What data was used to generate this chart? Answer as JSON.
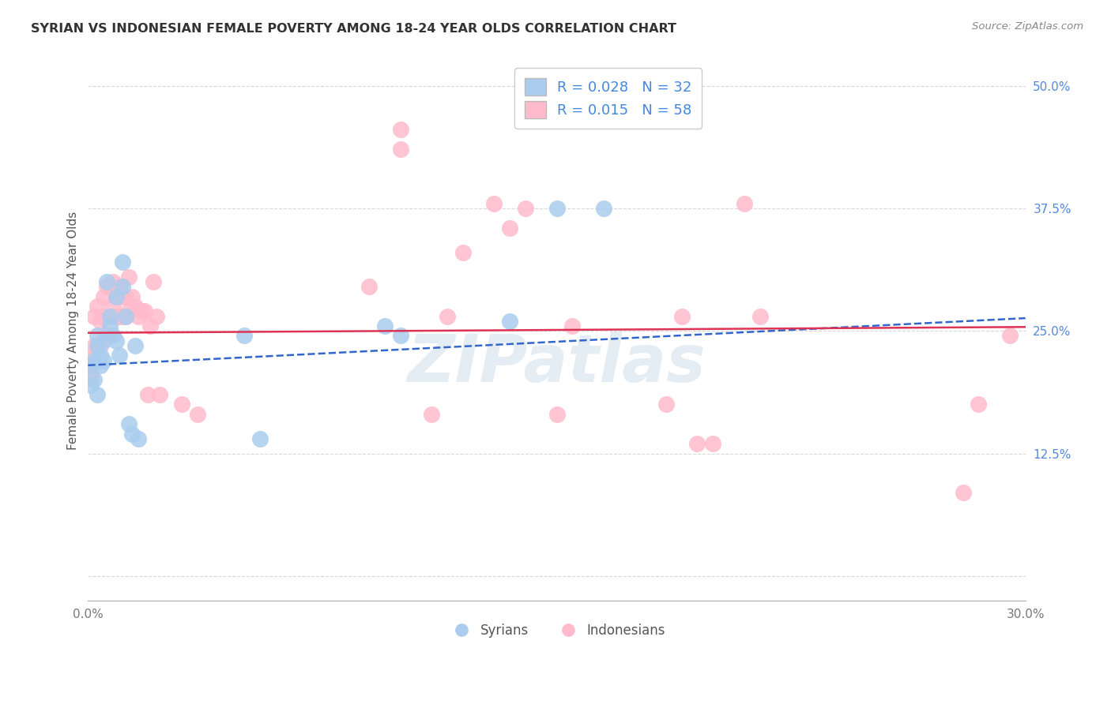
{
  "title": "SYRIAN VS INDONESIAN FEMALE POVERTY AMONG 18-24 YEAR OLDS CORRELATION CHART",
  "source": "Source: ZipAtlas.com",
  "ylabel": "Female Poverty Among 18-24 Year Olds",
  "xlim": [
    0.0,
    0.3
  ],
  "ylim": [
    -0.025,
    0.525
  ],
  "yticks": [
    0.0,
    0.125,
    0.25,
    0.375,
    0.5
  ],
  "ytick_labels": [
    "",
    "12.5%",
    "25.0%",
    "37.5%",
    "50.0%"
  ],
  "xticks": [
    0.0,
    0.05,
    0.1,
    0.15,
    0.2,
    0.25,
    0.3
  ],
  "xtick_labels": [
    "0.0%",
    "",
    "",
    "",
    "",
    "",
    "30.0%"
  ],
  "background_color": "#ffffff",
  "grid_color": "#d8d8d8",
  "syrians_color": "#aaccee",
  "indonesians_color": "#ffbbcc",
  "syrian_line_color": "#3366cc",
  "indonesian_line_color": "#dd3355",
  "legend_R_syrian": "R = 0.028",
  "legend_N_syrian": "N = 32",
  "legend_R_indonesian": "R = 0.015",
  "legend_N_indonesian": "N = 58",
  "watermark": "ZIPatlas",
  "syrians_x": [
    0.001,
    0.001,
    0.002,
    0.002,
    0.003,
    0.003,
    0.003,
    0.004,
    0.004,
    0.005,
    0.005,
    0.006,
    0.007,
    0.007,
    0.008,
    0.009,
    0.009,
    0.01,
    0.011,
    0.011,
    0.012,
    0.013,
    0.014,
    0.015,
    0.016,
    0.05,
    0.055,
    0.095,
    0.1,
    0.135,
    0.15,
    0.165
  ],
  "syrians_y": [
    0.215,
    0.195,
    0.22,
    0.2,
    0.245,
    0.235,
    0.185,
    0.225,
    0.215,
    0.24,
    0.22,
    0.3,
    0.265,
    0.255,
    0.245,
    0.285,
    0.24,
    0.225,
    0.32,
    0.295,
    0.265,
    0.155,
    0.145,
    0.235,
    0.14,
    0.245,
    0.14,
    0.255,
    0.245,
    0.26,
    0.375,
    0.375
  ],
  "indonesians_x": [
    0.001,
    0.001,
    0.002,
    0.002,
    0.003,
    0.003,
    0.004,
    0.004,
    0.005,
    0.005,
    0.006,
    0.006,
    0.007,
    0.007,
    0.008,
    0.008,
    0.009,
    0.009,
    0.01,
    0.01,
    0.011,
    0.011,
    0.012,
    0.012,
    0.013,
    0.013,
    0.014,
    0.015,
    0.016,
    0.017,
    0.018,
    0.019,
    0.02,
    0.021,
    0.022,
    0.023,
    0.03,
    0.035,
    0.09,
    0.1,
    0.1,
    0.11,
    0.115,
    0.12,
    0.13,
    0.135,
    0.14,
    0.15,
    0.155,
    0.185,
    0.19,
    0.195,
    0.2,
    0.21,
    0.215,
    0.28,
    0.285,
    0.295
  ],
  "indonesians_y": [
    0.225,
    0.205,
    0.265,
    0.235,
    0.275,
    0.235,
    0.26,
    0.235,
    0.285,
    0.265,
    0.295,
    0.245,
    0.295,
    0.265,
    0.3,
    0.275,
    0.285,
    0.265,
    0.295,
    0.265,
    0.285,
    0.265,
    0.285,
    0.265,
    0.305,
    0.27,
    0.285,
    0.275,
    0.265,
    0.27,
    0.27,
    0.185,
    0.255,
    0.3,
    0.265,
    0.185,
    0.175,
    0.165,
    0.295,
    0.455,
    0.435,
    0.165,
    0.265,
    0.33,
    0.38,
    0.355,
    0.375,
    0.165,
    0.255,
    0.175,
    0.265,
    0.135,
    0.135,
    0.38,
    0.265,
    0.085,
    0.175,
    0.245
  ],
  "syrian_line_x": [
    0.0,
    0.3
  ],
  "syrian_line_y": [
    0.215,
    0.263
  ],
  "indonesian_line_x": [
    0.0,
    0.3
  ],
  "indonesian_line_y": [
    0.248,
    0.254
  ]
}
